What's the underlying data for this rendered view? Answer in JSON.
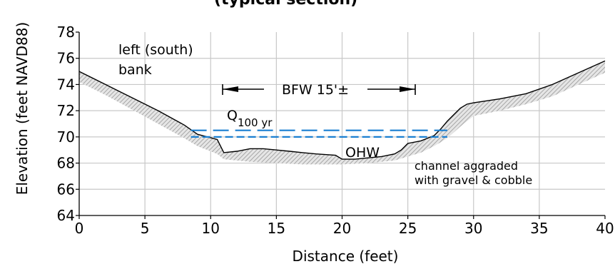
{
  "title_fragment": "(typical section)",
  "chart_data": {
    "type": "line",
    "xlabel": "Distance (feet)",
    "ylabel": "Elevation (feet NAVD88)",
    "xlim": [
      0,
      40
    ],
    "ylim": [
      64,
      78
    ],
    "x_ticks": [
      "0",
      "5",
      "10",
      "15",
      "20",
      "25",
      "30",
      "35",
      "40"
    ],
    "y_ticks": [
      "64",
      "66",
      "68",
      "70",
      "72",
      "74",
      "76",
      "78"
    ],
    "grid": true,
    "ground_profile": {
      "x": [
        0,
        2,
        4,
        6,
        8,
        9,
        10.5,
        11,
        12,
        13,
        14,
        15,
        16,
        17,
        18,
        19.5,
        20,
        21,
        22,
        23,
        24,
        24.5,
        25,
        26,
        27,
        27.5,
        28,
        28.5,
        29,
        29.5,
        30,
        32,
        34,
        36,
        38,
        40
      ],
      "y": [
        75.0,
        74.0,
        73.0,
        72.0,
        70.9,
        70.2,
        69.8,
        68.8,
        68.9,
        69.1,
        69.1,
        69.0,
        68.9,
        68.8,
        68.7,
        68.6,
        68.3,
        68.3,
        68.4,
        68.5,
        68.7,
        69.0,
        69.5,
        69.7,
        70.1,
        70.6,
        71.2,
        71.7,
        72.2,
        72.5,
        72.6,
        72.9,
        73.3,
        74.0,
        74.9,
        75.8
      ]
    },
    "fill_band": {
      "x": [
        0,
        2,
        4,
        6,
        8,
        9,
        10.5,
        11,
        13,
        15,
        17,
        19,
        20,
        22,
        24,
        25,
        26,
        27,
        28,
        29,
        30,
        32,
        34,
        36,
        38,
        40
      ],
      "y_lower": [
        74.2,
        73.2,
        72.1,
        71.0,
        69.9,
        69.3,
        68.7,
        68.3,
        68.1,
        68.0,
        67.9,
        67.9,
        67.9,
        68.0,
        68.2,
        68.5,
        68.8,
        69.3,
        69.9,
        70.8,
        71.6,
        72.0,
        72.5,
        73.1,
        74.0,
        74.9
      ]
    },
    "water_lines": [
      {
        "name": "Q100 yr",
        "elevation": 70.5,
        "x_range": [
          8.5,
          28
        ],
        "style": "long-dash",
        "color": "#1a7fd1"
      },
      {
        "name": "OHW",
        "elevation": 70.0,
        "x_range": [
          8.5,
          28
        ],
        "style": "dash",
        "color": "#1a7fd1"
      }
    ],
    "annotations": {
      "bank_line1": "left (south)",
      "bank_line2": "bank",
      "bfw": "BFW 15'±",
      "q_main": "Q",
      "q_sub": "100 yr",
      "ohw": "OHW",
      "channel_line1": "channel aggraded",
      "channel_line2": "with gravel & cobble"
    }
  }
}
